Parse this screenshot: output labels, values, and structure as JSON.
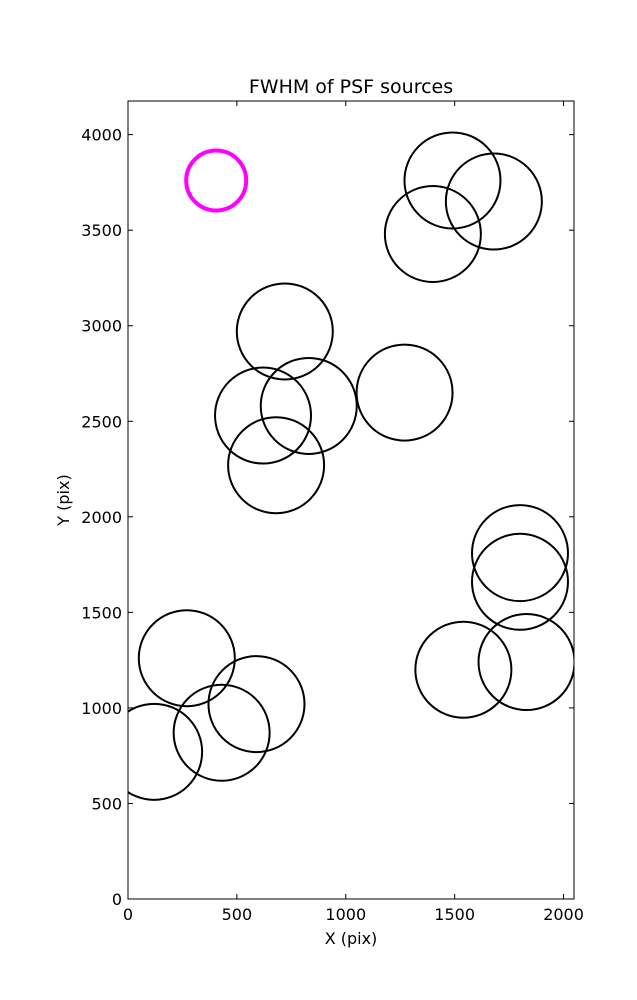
{
  "chart_data": {
    "type": "scatter",
    "title": "FWHM of PSF sources",
    "xlabel": "X (pix)",
    "ylabel": "Y (pix)",
    "xlim": [
      0,
      2048
    ],
    "ylim": [
      0,
      4176
    ],
    "xticks": [
      0,
      500,
      1000,
      1500,
      2000
    ],
    "yticks": [
      0,
      500,
      1000,
      1500,
      2000,
      2500,
      3000,
      3500,
      4000
    ],
    "grid": false,
    "marker": "circle",
    "series": [
      {
        "color": "#000000",
        "points": [
          {
            "x": 1490,
            "y": 3760
          },
          {
            "x": 1680,
            "y": 3650
          },
          {
            "x": 1400,
            "y": 3480
          },
          {
            "x": 720,
            "y": 2970
          },
          {
            "x": 830,
            "y": 2580
          },
          {
            "x": 620,
            "y": 2530
          },
          {
            "x": 680,
            "y": 2270
          },
          {
            "x": 1270,
            "y": 2650
          },
          {
            "x": 1800,
            "y": 1810
          },
          {
            "x": 1800,
            "y": 1660
          },
          {
            "x": 1540,
            "y": 1200
          },
          {
            "x": 1830,
            "y": 1240
          },
          {
            "x": 270,
            "y": 1260
          },
          {
            "x": 590,
            "y": 1020
          },
          {
            "x": 430,
            "y": 870
          },
          {
            "x": 120,
            "y": 770
          }
        ]
      },
      {
        "color": "#ff00ff",
        "points": [
          {
            "x": 405,
            "y": 3760
          }
        ]
      }
    ]
  }
}
